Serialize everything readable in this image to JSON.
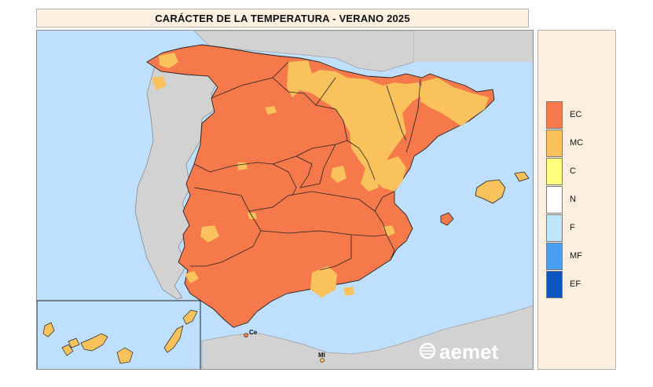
{
  "title": "CARÁCTER DE LA TEMPERATURA - VERANO 2025",
  "legend": [
    {
      "code": "EC",
      "color": "#f5794a"
    },
    {
      "code": "MC",
      "color": "#f9c25c"
    },
    {
      "code": "C",
      "color": "#fefe7e"
    },
    {
      "code": "N",
      "color": "#ffffff"
    },
    {
      "code": "F",
      "color": "#bfe6fb"
    },
    {
      "code": "MF",
      "color": "#4a9ff0"
    },
    {
      "code": "EF",
      "color": "#0b55c0"
    }
  ],
  "cities": {
    "ceuta": "Ce",
    "melilla": "Ml"
  },
  "logo": "aemet",
  "colors": {
    "sea": "#bfdfff",
    "land_other": "#d2d2d2",
    "ec": "#f5794a",
    "mc": "#f9c25c"
  }
}
